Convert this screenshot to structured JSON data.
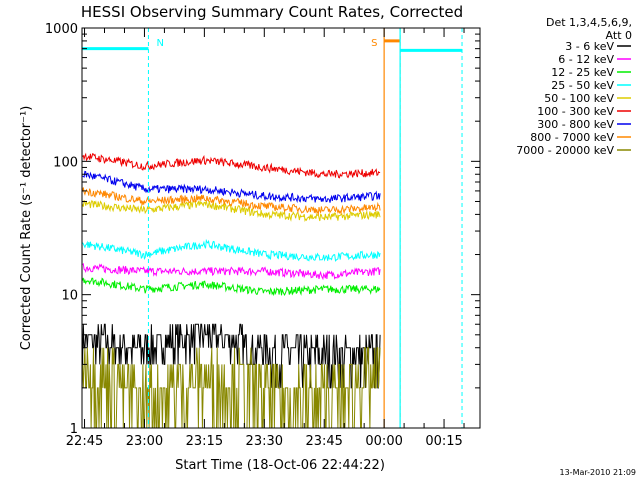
{
  "chart_data": {
    "type": "line",
    "title": "HESSI Observing Summary Count Rates, Corrected",
    "xlabel": "Start Time (18-Oct-06 22:44:22)",
    "ylabel": "Corrected Count Rate (s⁻¹ detector⁻¹)",
    "y_scale": "log",
    "ylim": [
      1,
      1000
    ],
    "y_ticks": [
      1,
      10,
      100,
      1000
    ],
    "y_tick_labels": [
      "1",
      "10",
      "100",
      "1000"
    ],
    "xlim": [
      "22:44:22",
      "00:24:00"
    ],
    "x_ticks": [
      "22:45",
      "23:00",
      "23:15",
      "23:30",
      "23:45",
      "00:00",
      "00:15"
    ],
    "legend_title": [
      "Det 1,3,4,5,6,9,",
      "Att 0"
    ],
    "legend_position": "right",
    "footer_date": "13-Mar-2010 21:09",
    "series": [
      {
        "name": "3 - 6 keV",
        "color": "#000000",
        "x": [
          "22:45",
          "23:00",
          "23:15",
          "23:30",
          "23:45",
          "23:58"
        ],
        "values": [
          4.5,
          4.0,
          5.0,
          3.8,
          3.5,
          3.5
        ]
      },
      {
        "name": "6 - 12 keV",
        "color": "#ff00ff",
        "x": [
          "22:45",
          "23:00",
          "23:15",
          "23:30",
          "23:45",
          "23:58"
        ],
        "values": [
          16,
          15,
          15,
          15,
          14,
          15
        ]
      },
      {
        "name": "12 - 25 keV",
        "color": "#00ee00",
        "x": [
          "22:45",
          "23:00",
          "23:15",
          "23:30",
          "23:45",
          "23:58"
        ],
        "values": [
          13,
          11,
          12,
          10.5,
          11,
          11
        ]
      },
      {
        "name": "25 - 50 keV",
        "color": "#00ffff",
        "x": [
          "22:45",
          "23:00",
          "23:15",
          "23:30",
          "23:45",
          "23:58"
        ],
        "values": [
          24,
          20,
          24,
          20,
          19,
          20
        ]
      },
      {
        "name": "50 - 100 keV",
        "color": "#ddcc00",
        "x": [
          "22:45",
          "23:00",
          "23:15",
          "23:30",
          "23:45",
          "23:58"
        ],
        "values": [
          48,
          43,
          48,
          40,
          38,
          40
        ]
      },
      {
        "name": "100 - 300 keV",
        "color": "#ee0000",
        "x": [
          "22:45",
          "23:00",
          "23:15",
          "23:30",
          "23:45",
          "23:58"
        ],
        "values": [
          110,
          92,
          102,
          90,
          80,
          82
        ]
      },
      {
        "name": "300 - 800 keV",
        "color": "#0000ee",
        "x": [
          "22:45",
          "23:00",
          "23:15",
          "23:30",
          "23:45",
          "23:58"
        ],
        "values": [
          80,
          62,
          62,
          55,
          52,
          55
        ]
      },
      {
        "name": "800 - 7000 keV",
        "color": "#ff8800",
        "x": [
          "22:45",
          "23:00",
          "23:15",
          "23:30",
          "23:45",
          "23:58"
        ],
        "values": [
          60,
          50,
          53,
          46,
          43,
          45
        ]
      },
      {
        "name": "7000 - 20000 keV",
        "color": "#888800",
        "x": [
          "22:45",
          "23:00",
          "23:15",
          "23:30",
          "23:45",
          "23:58"
        ],
        "values": [
          3,
          1.5,
          2.5,
          2,
          1.5,
          2.5
        ]
      }
    ],
    "annotations": [
      {
        "label": "N",
        "color": "#00ffff",
        "start": "22:44:22",
        "end": "23:01:00",
        "level": 700
      },
      {
        "label": "S",
        "color": "#ff8800",
        "start": "00:00:00",
        "end": "00:04:00",
        "level": 800
      },
      {
        "label": "",
        "color": "#00ffff",
        "start": "00:04:00",
        "end": "00:19:30",
        "level": 680
      }
    ]
  }
}
